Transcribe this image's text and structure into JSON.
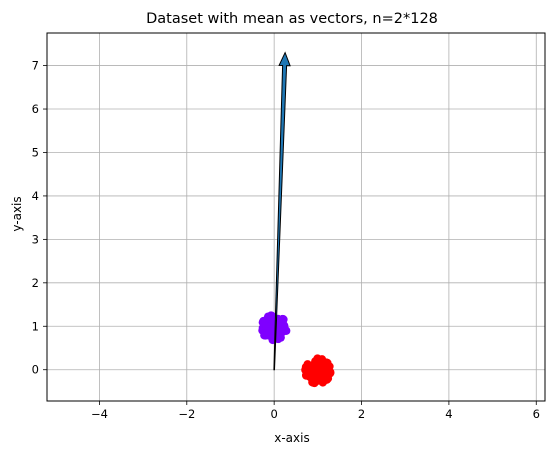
{
  "chart_data": {
    "type": "scatter",
    "title": "Dataset with mean as vectors, n=2*128",
    "xlabel": "x-axis",
    "ylabel": "y-axis",
    "xlim": [
      -5.2,
      6.2
    ],
    "ylim": [
      -0.72,
      7.75
    ],
    "xticks": [
      -4,
      -2,
      0,
      2,
      4,
      6
    ],
    "yticks": [
      0,
      1,
      2,
      3,
      4,
      5,
      6,
      7
    ],
    "grid": true,
    "colors": {
      "cluster_a": "#7f00ff",
      "cluster_b": "#ff0000",
      "arrow_fill": "#1f77b4",
      "arrow_edge": "#000000",
      "grid": "#b0b0b0"
    },
    "series": [
      {
        "center": [
          0.0,
          0.97
        ],
        "spread": 0.13,
        "count": 128,
        "color": "#7f00ff"
      },
      {
        "center": [
          1.0,
          -0.03
        ],
        "spread": 0.13,
        "count": 128,
        "color": "#ff0000"
      }
    ],
    "arrows": [
      {
        "from": [
          0.0,
          0.0
        ],
        "to": [
          0.25,
          7.3
        ]
      }
    ]
  }
}
